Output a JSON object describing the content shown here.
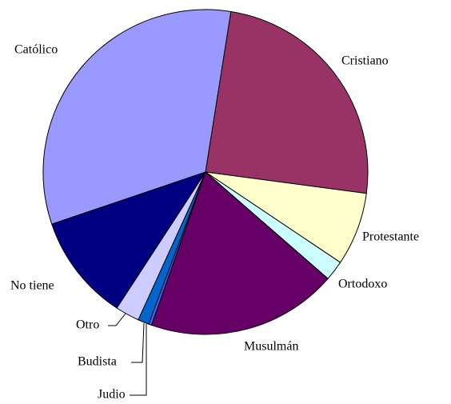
{
  "chart_data": {
    "type": "pie",
    "categories": [
      "Cristiano",
      "Protestante",
      "Ortodoxo",
      "Musulmán",
      "Judio",
      "Budista",
      "Otro",
      "No tiene",
      "Católico"
    ],
    "values": [
      24.6,
      7.3,
      2.0,
      19.0,
      0.3,
      1.1,
      2.4,
      10.6,
      32.7
    ],
    "colors": [
      "#993366",
      "#FFFFCC",
      "#CCFFFF",
      "#660066",
      "#3366FF",
      "#0066CC",
      "#CCCCFF",
      "#000080",
      "#9999FF"
    ]
  }
}
